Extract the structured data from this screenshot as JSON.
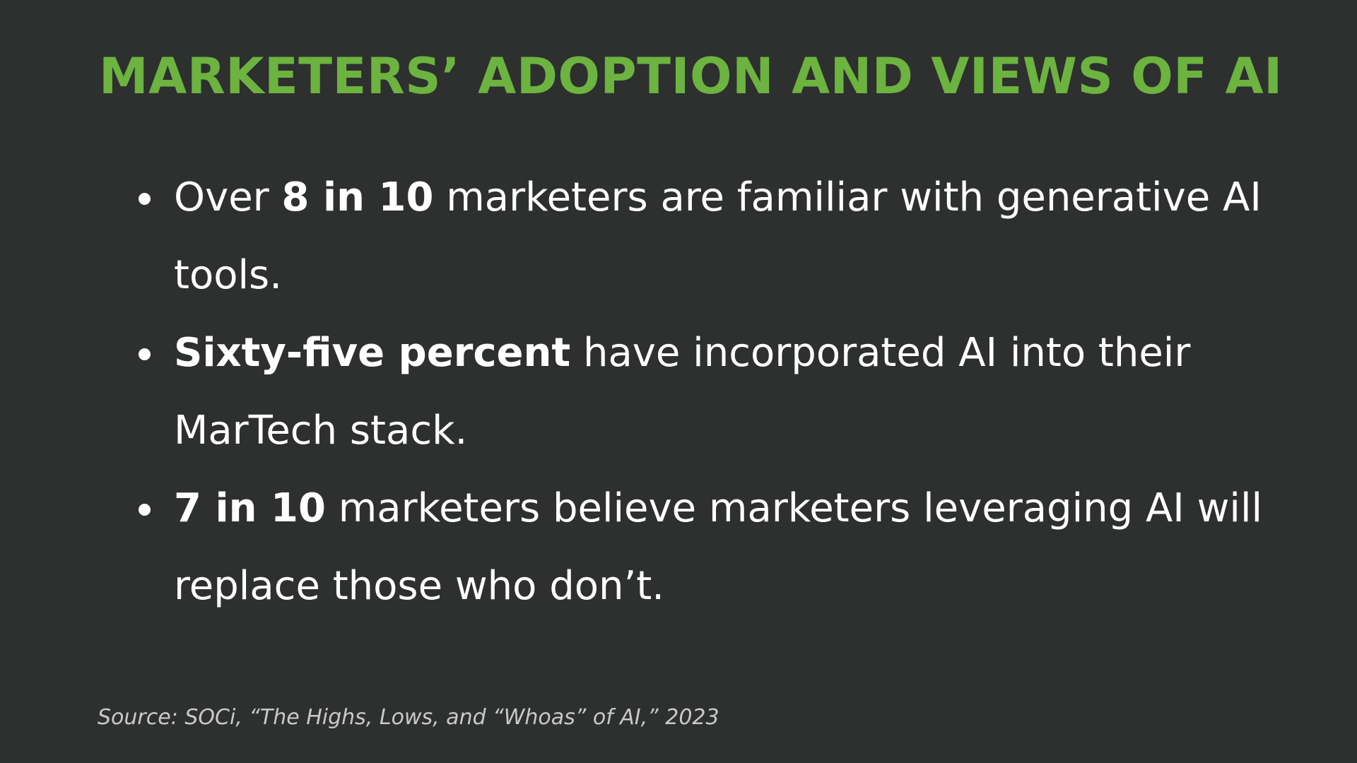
{
  "slide": {
    "title": "MARKETERS’ ADOPTION AND VIEWS OF AI",
    "title_color": "#6cb33f",
    "background_color": "#2e2f2f",
    "bullets": [
      {
        "bold": "8 in 10",
        "prefix": "Over ",
        "suffix": " marketers are familiar with generative AI tools."
      },
      {
        "bold": "Sixty-five percent",
        "prefix": "",
        "suffix": " have incorporated AI into their MarTech stack."
      },
      {
        "bold": "7 in 10",
        "prefix": "",
        "suffix": " marketers believe marketers leveraging AI will replace those who don’t."
      }
    ],
    "source": "Source: SOCi, “The Highs, Lows, and “Whoas” of AI,” 2023"
  }
}
